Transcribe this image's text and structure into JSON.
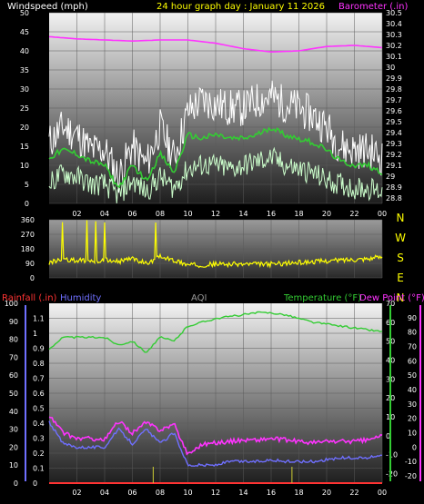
{
  "colors": {
    "wind_avg": "#33cc33",
    "wind_gust": "#ffffff",
    "wind_light": "#ccffcc",
    "barometer": "#ff33ff",
    "wind_dir": "#ffff00",
    "rainfall": "#ff3333",
    "humidity": "#6f6fff",
    "aqi": "#999999",
    "temperature": "#33cc33",
    "dew_point": "#ff33ff",
    "yellow_label": "#ffff00"
  },
  "header": {
    "windspeed_label": "Windspeed (mph)",
    "title": "24 hour graph day : January 11 2026",
    "barometer_label": "Barometer (.in)"
  },
  "lower_header": {
    "rainfall_label": "Rainfall (.in)",
    "humidity_label": "Humidity",
    "aqi_label": "AQI",
    "temperature_label": "Temperature (°F)",
    "dewpoint_label": "Dew Point (°F)"
  },
  "compass": [
    "N",
    "W",
    "S",
    "E",
    "N"
  ],
  "chart_data": [
    {
      "type": "line",
      "title": "24 hour graph day : January 11 2026",
      "x_ticks": [
        "02",
        "04",
        "06",
        "08",
        "10",
        "12",
        "14",
        "16",
        "18",
        "20",
        "22",
        "00"
      ],
      "y_left_label": "Windspeed (mph)",
      "y_left_ticks": [
        "0",
        "5",
        "10",
        "15",
        "20",
        "25",
        "30",
        "35",
        "40",
        "45",
        "50"
      ],
      "ylim_left": [
        0,
        50
      ],
      "y_right_label": "Barometer (.in)",
      "y_right_ticks": [
        "28.8",
        "28.9",
        "29",
        "29.1",
        "29.2",
        "29.3",
        "29.4",
        "29.5",
        "29.6",
        "29.7",
        "29.8",
        "29.9",
        "30",
        "30.1",
        "30.2",
        "30.3",
        "30.4",
        "30.5"
      ],
      "ylim_right": [
        28.75,
        30.5
      ],
      "series": [
        {
          "name": "Barometer (.in)",
          "axis": "right",
          "x": [
            0,
            2,
            4,
            6,
            8,
            10,
            12,
            14,
            16,
            18,
            20,
            22,
            24
          ],
          "values": [
            30.28,
            30.26,
            30.25,
            30.24,
            30.25,
            30.25,
            30.22,
            30.17,
            30.14,
            30.15,
            30.19,
            30.2,
            30.18
          ]
        },
        {
          "axis": "left",
          "x": [
            0,
            1,
            2,
            3,
            4,
            5,
            6,
            7,
            8,
            9,
            10,
            11,
            12,
            13,
            14,
            15,
            16,
            17,
            18,
            19,
            20,
            21,
            22,
            23,
            24
          ],
          "values": [
            12,
            14,
            13,
            11,
            10,
            4,
            10,
            6,
            13,
            8,
            18,
            17,
            18,
            17,
            17,
            18,
            20,
            18,
            17,
            16,
            14,
            11,
            10,
            10,
            8
          ]
        },
        {
          "axis": "left",
          "x": [
            0,
            1,
            2,
            3,
            4,
            5,
            6,
            7,
            8,
            9,
            10,
            11,
            12,
            13,
            14,
            15,
            16,
            17,
            18,
            19,
            20,
            21,
            22,
            23,
            24
          ],
          "values": [
            16,
            20,
            18,
            14,
            14,
            7,
            15,
            10,
            20,
            12,
            24,
            27,
            26,
            25,
            25,
            27,
            28,
            26,
            25,
            23,
            20,
            15,
            14,
            14,
            12
          ]
        },
        {
          "axis": "left",
          "x": [
            0,
            1,
            2,
            3,
            4,
            5,
            6,
            7,
            8,
            9,
            10,
            11,
            12,
            13,
            14,
            15,
            16,
            17,
            18,
            19,
            20,
            21,
            22,
            23,
            24
          ],
          "values": [
            5,
            8,
            7,
            5,
            5,
            2,
            6,
            3,
            7,
            4,
            9,
            10,
            10,
            9,
            10,
            11,
            12,
            10,
            9,
            8,
            6,
            5,
            4,
            4,
            3
          ]
        }
      ]
    },
    {
      "type": "line",
      "x_ticks": [],
      "y_left_ticks": [
        "0",
        "90",
        "180",
        "270",
        "360"
      ],
      "ylim_left": [
        0,
        360
      ],
      "series": [
        {
          "axis": "left",
          "x": [
            0,
            1,
            2,
            3,
            4,
            5,
            6,
            7,
            8,
            9,
            10,
            11,
            12,
            13,
            14,
            15,
            16,
            17,
            18,
            19,
            20,
            21,
            22,
            23,
            24
          ],
          "values": [
            95,
            110,
            110,
            100,
            110,
            100,
            120,
            90,
            130,
            110,
            80,
            80,
            85,
            85,
            85,
            85,
            85,
            90,
            95,
            100,
            105,
            110,
            115,
            120,
            130
          ]
        }
      ]
    },
    {
      "type": "line",
      "x_ticks": [
        "02",
        "04",
        "06",
        "08",
        "10",
        "12",
        "14",
        "16",
        "18",
        "20",
        "22",
        "00"
      ],
      "y_left_outer_label": "Humidity",
      "y_left_outer_ticks": [
        "0",
        "10",
        "20",
        "30",
        "40",
        "50",
        "60",
        "70",
        "80",
        "90",
        "100"
      ],
      "ylim_left_outer": [
        0,
        100
      ],
      "y_left_inner_label": "Rainfall (.in)",
      "y_left_inner_ticks": [
        "0",
        "0.1",
        "0.2",
        "0.3",
        "0.4",
        "0.5",
        "0.6",
        "0.7",
        "0.8",
        "0.9",
        "1",
        "1.1"
      ],
      "ylim_left_inner": [
        0,
        1.2
      ],
      "y_right_inner_label": "Temperature (°F)",
      "y_right_inner_ticks": [
        "-20",
        "-10",
        "0",
        "10",
        "20",
        "30",
        "40",
        "50",
        "60",
        "70"
      ],
      "ylim_right_inner": [
        -25,
        70
      ],
      "y_right_outer_label": "Dew Point (°F)",
      "y_right_outer_ticks": [
        "-20",
        "-10",
        "0",
        "10",
        "20",
        "30",
        "40",
        "50",
        "60",
        "70",
        "80",
        "90"
      ],
      "ylim_right_outer": [
        -25,
        100
      ],
      "series": [
        {
          "name": "Temperature (°F)",
          "axis": "right_inner",
          "x": [
            0,
            1,
            2,
            3,
            4,
            5,
            6,
            7,
            8,
            9,
            10,
            11,
            12,
            13,
            14,
            15,
            16,
            17,
            18,
            19,
            20,
            21,
            22,
            23,
            24
          ],
          "values": [
            46,
            52,
            52,
            52,
            52,
            48,
            50,
            44,
            52,
            50,
            58,
            60,
            62,
            63,
            64,
            65,
            65,
            64,
            62,
            60,
            59,
            58,
            57,
            56,
            55
          ]
        },
        {
          "name": "Dew Point (°F)",
          "axis": "right_outer",
          "x": [
            0,
            1,
            2,
            3,
            4,
            5,
            6,
            7,
            8,
            9,
            10,
            11,
            12,
            13,
            14,
            15,
            16,
            17,
            18,
            19,
            20,
            21,
            22,
            23,
            24
          ],
          "values": [
            22,
            10,
            6,
            6,
            5,
            18,
            10,
            17,
            12,
            16,
            -5,
            2,
            3,
            4,
            5,
            5,
            6,
            5,
            4,
            3,
            4,
            4,
            4,
            5,
            8
          ]
        },
        {
          "name": "Humidity",
          "axis": "left_outer",
          "x": [
            0,
            1,
            2,
            3,
            4,
            5,
            6,
            7,
            8,
            9,
            10,
            11,
            12,
            13,
            14,
            15,
            16,
            17,
            18,
            19,
            20,
            21,
            22,
            23,
            24
          ],
          "values": [
            34,
            22,
            20,
            20,
            20,
            30,
            22,
            30,
            22,
            28,
            10,
            10,
            10,
            12,
            12,
            12,
            13,
            12,
            12,
            12,
            13,
            14,
            14,
            14,
            16
          ]
        },
        {
          "name": "Rainfall (.in)",
          "axis": "left_inner",
          "x": [
            0,
            24
          ],
          "values": [
            0,
            0
          ]
        }
      ]
    }
  ]
}
